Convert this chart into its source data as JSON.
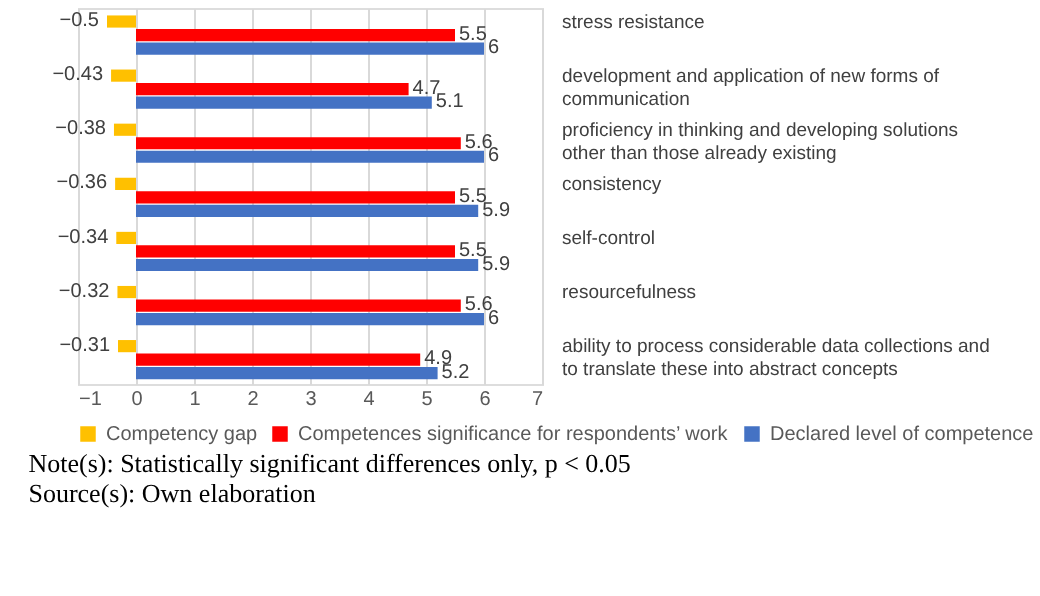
{
  "chart_data": {
    "type": "bar",
    "orientation": "horizontal",
    "categories": [
      "stress resistance",
      "development and application of new forms of communication",
      "proficiency in thinking and developing solutions other than those already existing",
      "consistency",
      "self-control",
      "resourcefulness",
      "ability to process considerable data collections and to translate these into abstract concepts"
    ],
    "series": [
      {
        "name": "Competency gap",
        "color": "#ffc000",
        "values": [
          -0.5,
          -0.43,
          -0.38,
          -0.36,
          -0.34,
          -0.32,
          -0.31
        ]
      },
      {
        "name": "Competences significance for respondents’ work",
        "color": "#ff0000",
        "values": [
          5.5,
          4.7,
          5.6,
          5.5,
          5.5,
          5.6,
          4.9
        ]
      },
      {
        "name": "Declared level of competence",
        "color": "#4472c4",
        "values": [
          6,
          5.1,
          6,
          5.9,
          5.9,
          6,
          5.2
        ]
      }
    ],
    "xlim": [
      -1,
      7
    ],
    "xticks": [
      -1,
      0,
      1,
      2,
      3,
      4,
      5,
      6,
      7
    ],
    "grid": "x",
    "legend": "bottom",
    "data_labels": true,
    "annotations": [
      "Note(s): Statistically significant differences only, p < 0.05",
      "Source(s): Own elaboration"
    ]
  }
}
